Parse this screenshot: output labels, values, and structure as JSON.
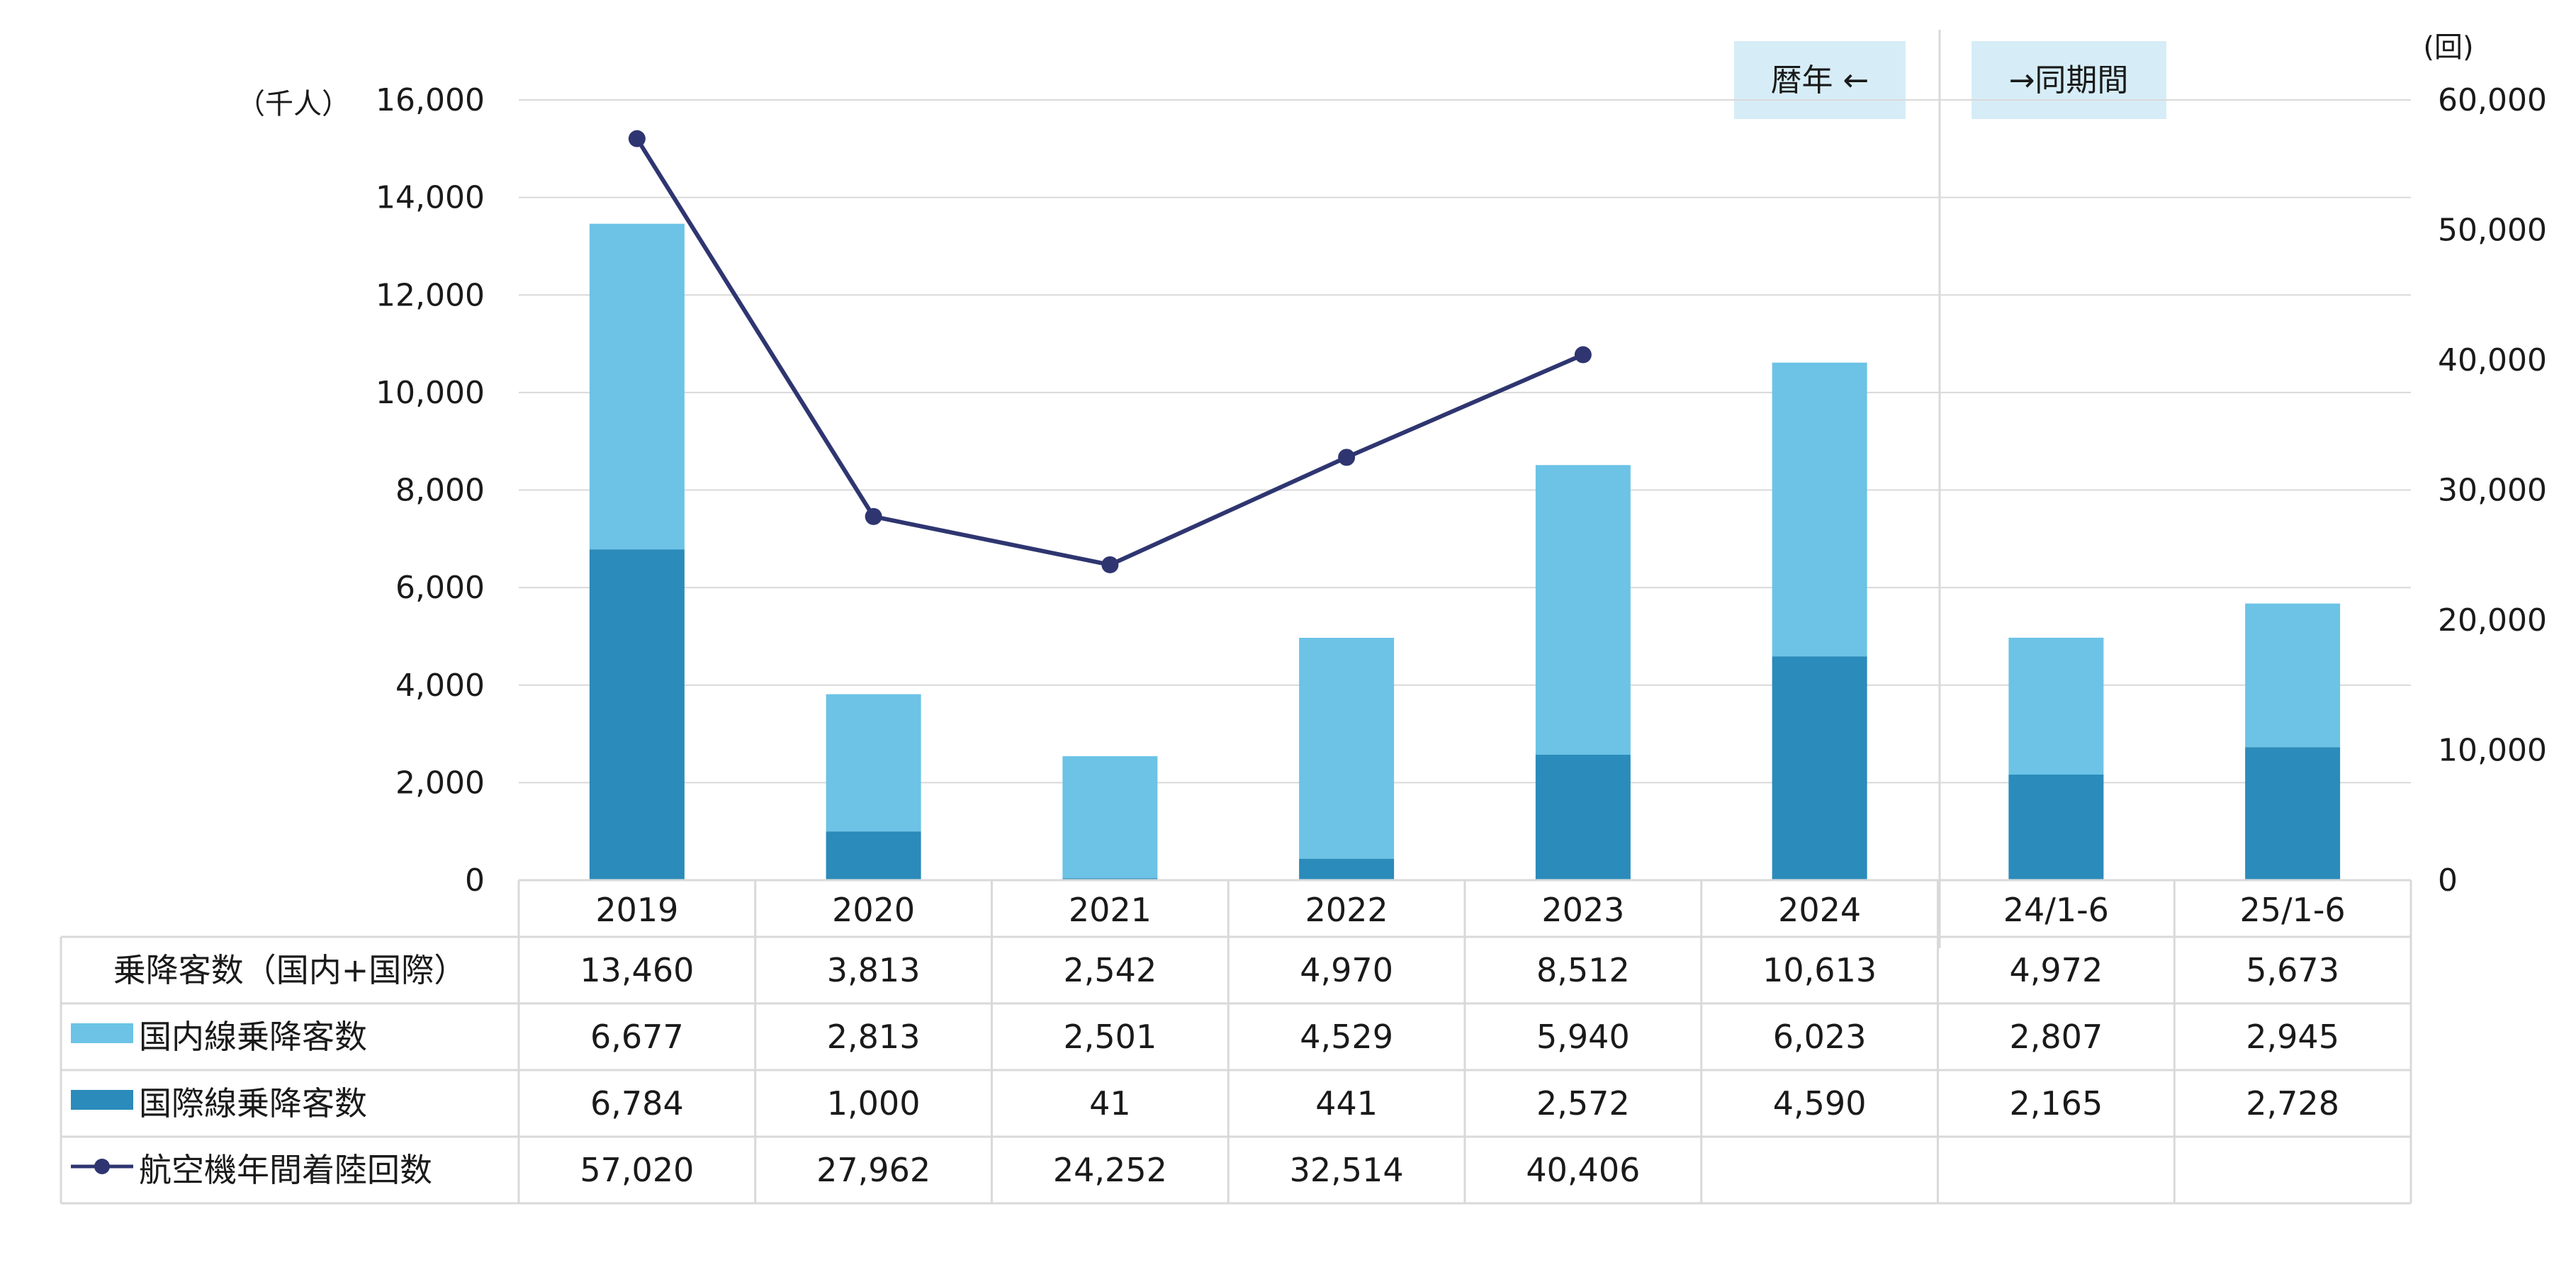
{
  "chart_data": {
    "type": "bar",
    "categories": [
      "2019",
      "2020",
      "2021",
      "2022",
      "2023",
      "2024",
      "24/1-6",
      "25/1-6"
    ],
    "series": [
      {
        "name": "国際線乗降客数",
        "type": "stacked-bar",
        "axis": "left",
        "color": "#2b8bba",
        "values": [
          6784,
          1000,
          41,
          441,
          2572,
          4590,
          2165,
          2728
        ]
      },
      {
        "name": "国内線乗降客数",
        "type": "stacked-bar",
        "axis": "left",
        "color": "#6cc3e6",
        "values": [
          6677,
          2813,
          2501,
          4529,
          5940,
          6023,
          2807,
          2945
        ]
      },
      {
        "name": "航空機年間着陸回数",
        "type": "line",
        "axis": "right",
        "color": "#2e3570",
        "values": [
          57020,
          27962,
          24252,
          32514,
          40406,
          null,
          null,
          null
        ]
      }
    ],
    "left_axis": {
      "unit_label": "（千人）",
      "ylim": [
        0,
        16000
      ],
      "ticks": [
        "0",
        "2,000",
        "4,000",
        "6,000",
        "8,000",
        "10,000",
        "12,000",
        "14,000",
        "16,000"
      ]
    },
    "right_axis": {
      "unit_label": "(回)",
      "ylim": [
        0,
        60000
      ],
      "ticks": [
        "0",
        "10,000",
        "20,000",
        "30,000",
        "40,000",
        "50,000",
        "60,000"
      ]
    },
    "period_labels": {
      "calendar": "暦年 ←",
      "same_period": "→同期間"
    },
    "grid": true,
    "colors": {
      "international": "#2b8bba",
      "domestic": "#6cc3e6",
      "line": "#2e3570",
      "period_box": "#d6edf7",
      "grid": "#d9d9d9"
    },
    "table": {
      "rows": [
        {
          "label": "乗降客数（国内+国際）",
          "marker": "none",
          "values": [
            "13,460",
            "3,813",
            "2,542",
            "4,970",
            "8,512",
            "10,613",
            "4,972",
            "5,673"
          ]
        },
        {
          "label": "国内線乗降客数",
          "marker": "domestic-swatch",
          "values": [
            "6,677",
            "2,813",
            "2,501",
            "4,529",
            "5,940",
            "6,023",
            "2,807",
            "2,945"
          ]
        },
        {
          "label": "国際線乗降客数",
          "marker": "international-swatch",
          "values": [
            "6,784",
            "1,000",
            "41",
            "441",
            "2,572",
            "4,590",
            "2,165",
            "2,728"
          ]
        },
        {
          "label": "航空機年間着陸回数",
          "marker": "line-marker",
          "values": [
            "57,020",
            "27,962",
            "24,252",
            "32,514",
            "40,406",
            "",
            "",
            ""
          ]
        }
      ]
    }
  }
}
